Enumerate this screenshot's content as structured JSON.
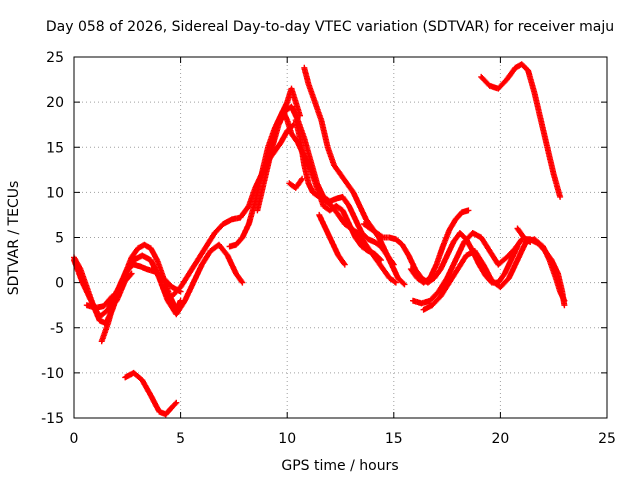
{
  "chart_data": {
    "type": "scatter",
    "title": "Day 058 of 2026, Sidereal Day-to-day VTEC variation (SDTVAR) for receiver maju",
    "xlabel": "GPS time / hours",
    "ylabel": "SDTVAR / TECUs",
    "xlim": [
      0,
      25
    ],
    "ylim": [
      -15,
      25
    ],
    "xticks": [
      0,
      5,
      10,
      15,
      20,
      25
    ],
    "yticks": [
      -15,
      -10,
      -5,
      0,
      5,
      10,
      15,
      20,
      25
    ],
    "xtick_labels": [
      "0",
      "5",
      "10",
      "15",
      "20",
      "25"
    ],
    "ytick_labels": [
      "-15",
      "-10",
      "-5",
      "0",
      "5",
      "10",
      "15",
      "20",
      "25"
    ],
    "grid": true,
    "marker": "+",
    "color": "#ff0000",
    "series": [
      {
        "name": "arc-01",
        "points": [
          [
            0,
            2.8
          ],
          [
            0.3,
            1.5
          ],
          [
            0.6,
            -0.5
          ],
          [
            0.9,
            -2.5
          ],
          [
            1.2,
            -4.2
          ],
          [
            1.5,
            -4.5
          ],
          [
            1.8,
            -3
          ],
          [
            2.1,
            -1
          ],
          [
            2.4,
            1
          ],
          [
            2.7,
            2.8
          ],
          [
            3,
            3.8
          ],
          [
            3.3,
            4.2
          ],
          [
            3.6,
            3.8
          ],
          [
            3.9,
            2.5
          ],
          [
            4.2,
            0.5
          ],
          [
            4.5,
            -1.5
          ],
          [
            4.8,
            -3
          ],
          [
            5.0,
            -2
          ]
        ]
      },
      {
        "name": "arc-02",
        "points": [
          [
            0,
            2.5
          ],
          [
            0.4,
            0
          ],
          [
            0.8,
            -2
          ],
          [
            1.2,
            -3.8
          ],
          [
            1.6,
            -3
          ],
          [
            2.0,
            -1
          ],
          [
            2.4,
            0.8
          ],
          [
            2.8,
            2.5
          ],
          [
            3.2,
            3
          ],
          [
            3.6,
            2.5
          ],
          [
            4.0,
            0.5
          ],
          [
            4.4,
            -2
          ],
          [
            4.8,
            -3.5
          ],
          [
            5.2,
            -2
          ],
          [
            5.6,
            0
          ],
          [
            6.0,
            2
          ],
          [
            6.4,
            3.5
          ],
          [
            6.8,
            4.2
          ],
          [
            7.2,
            3
          ],
          [
            7.6,
            1
          ],
          [
            7.9,
            0
          ]
        ]
      },
      {
        "name": "arc-03",
        "points": [
          [
            1.3,
            -6.5
          ],
          [
            1.6,
            -4.5
          ],
          [
            1.9,
            -2
          ],
          [
            2.2,
            0
          ],
          [
            2.5,
            1.5
          ],
          [
            2.8,
            2
          ],
          [
            3.1,
            1.8
          ],
          [
            3.4,
            1.5
          ],
          [
            3.8,
            1.2
          ],
          [
            4.2,
            0.5
          ],
          [
            4.6,
            -0.5
          ],
          [
            5.0,
            -1
          ]
        ]
      },
      {
        "name": "arc-04",
        "points": [
          [
            1.6,
            -3
          ],
          [
            2.0,
            -2
          ],
          [
            2.4,
            0.2
          ],
          [
            2.7,
            1
          ]
        ]
      },
      {
        "name": "arc-05",
        "points": [
          [
            0.6,
            -2.5
          ],
          [
            1.0,
            -2.8
          ],
          [
            1.4,
            -2.6
          ],
          [
            1.8,
            -1.5
          ]
        ]
      },
      {
        "name": "arc-06",
        "points": [
          [
            2.4,
            -10.5
          ],
          [
            2.8,
            -10
          ],
          [
            3.2,
            -10.8
          ],
          [
            3.6,
            -12.5
          ],
          [
            4.0,
            -14.3
          ],
          [
            4.3,
            -14.6
          ],
          [
            4.6,
            -13.8
          ],
          [
            4.8,
            -13.3
          ]
        ]
      },
      {
        "name": "arc-07",
        "points": [
          [
            4.6,
            -1.5
          ],
          [
            5.0,
            -0.5
          ],
          [
            5.4,
            1
          ],
          [
            5.8,
            2.5
          ],
          [
            6.2,
            4
          ],
          [
            6.6,
            5.5
          ],
          [
            7.0,
            6.5
          ],
          [
            7.4,
            7
          ],
          [
            7.8,
            7.2
          ],
          [
            8.2,
            8.5
          ],
          [
            8.5,
            10.5
          ],
          [
            8.8,
            12
          ],
          [
            9.1,
            13.5
          ],
          [
            9.4,
            14.5
          ],
          [
            9.7,
            15.5
          ],
          [
            10.0,
            16.8
          ],
          [
            10.3,
            17.5
          ]
        ]
      },
      {
        "name": "arc-08",
        "points": [
          [
            7.3,
            4
          ],
          [
            7.6,
            4.2
          ],
          [
            7.9,
            5
          ],
          [
            8.2,
            6.5
          ],
          [
            8.5,
            9
          ],
          [
            8.8,
            12
          ],
          [
            9.1,
            15
          ],
          [
            9.4,
            17
          ],
          [
            9.7,
            18.5
          ],
          [
            10.0,
            20
          ],
          [
            10.2,
            21.5
          ],
          [
            10.4,
            20
          ],
          [
            10.6,
            18.5
          ]
        ]
      },
      {
        "name": "arc-09",
        "points": [
          [
            8.6,
            8
          ],
          [
            8.9,
            11
          ],
          [
            9.2,
            14
          ],
          [
            9.5,
            17.5
          ],
          [
            9.8,
            19
          ],
          [
            10.0,
            18
          ],
          [
            10.2,
            16.5
          ],
          [
            10.5,
            15.5
          ],
          [
            10.8,
            14
          ],
          [
            11.1,
            12.5
          ],
          [
            11.4,
            10.5
          ],
          [
            11.7,
            8.5
          ],
          [
            12.0,
            8
          ],
          [
            12.3,
            8.5
          ],
          [
            12.6,
            8
          ],
          [
            12.9,
            6.5
          ],
          [
            13.2,
            5
          ],
          [
            13.5,
            4
          ],
          [
            13.8,
            3.5
          ],
          [
            14.1,
            3.2
          ],
          [
            14.4,
            2.5
          ]
        ]
      },
      {
        "name": "arc-10",
        "points": [
          [
            9.0,
            12.5
          ],
          [
            9.3,
            15
          ],
          [
            9.6,
            17.5
          ],
          [
            9.9,
            19
          ],
          [
            10.2,
            19.5
          ],
          [
            10.5,
            18
          ],
          [
            10.8,
            16
          ],
          [
            11.1,
            13.5
          ],
          [
            11.4,
            11
          ],
          [
            11.7,
            9.5
          ],
          [
            12.0,
            9
          ],
          [
            12.3,
            9.3
          ],
          [
            12.6,
            9.5
          ],
          [
            12.9,
            8.5
          ],
          [
            13.2,
            7
          ],
          [
            13.5,
            5.5
          ],
          [
            13.8,
            4.8
          ],
          [
            14.1,
            4.5
          ],
          [
            14.4,
            4
          ],
          [
            14.7,
            3
          ],
          [
            15.0,
            2
          ]
        ]
      },
      {
        "name": "arc-11",
        "points": [
          [
            10.8,
            23.8
          ],
          [
            11.0,
            22
          ],
          [
            11.3,
            20
          ],
          [
            11.6,
            18
          ],
          [
            11.9,
            15
          ],
          [
            12.2,
            13
          ],
          [
            12.5,
            12
          ],
          [
            12.8,
            11
          ],
          [
            13.1,
            10
          ],
          [
            13.4,
            8.5
          ],
          [
            13.7,
            7
          ],
          [
            14.0,
            6
          ],
          [
            14.3,
            5
          ],
          [
            14.6,
            3.5
          ],
          [
            14.9,
            2
          ],
          [
            15.2,
            0.5
          ],
          [
            15.5,
            -0.2
          ]
        ]
      },
      {
        "name": "arc-12",
        "points": [
          [
            10.4,
            18
          ],
          [
            10.6,
            16
          ],
          [
            10.8,
            13
          ],
          [
            11.0,
            11
          ],
          [
            11.2,
            10
          ],
          [
            11.5,
            9.5
          ],
          [
            11.8,
            9
          ],
          [
            12.1,
            8.5
          ],
          [
            12.4,
            7.5
          ],
          [
            12.7,
            6.5
          ],
          [
            13.0,
            6
          ],
          [
            13.3,
            5.5
          ],
          [
            13.6,
            4.5
          ],
          [
            13.9,
            3.5
          ],
          [
            14.2,
            2.5
          ],
          [
            14.5,
            1.5
          ],
          [
            14.8,
            0.5
          ],
          [
            15.1,
            0
          ]
        ]
      },
      {
        "name": "arc-13",
        "points": [
          [
            11.5,
            7.5
          ],
          [
            11.8,
            6
          ],
          [
            12.1,
            4.5
          ],
          [
            12.4,
            3
          ],
          [
            12.7,
            2
          ]
        ]
      },
      {
        "name": "arc-14",
        "points": [
          [
            10.1,
            11
          ],
          [
            10.4,
            10.5
          ],
          [
            10.7,
            11.5
          ]
        ]
      },
      {
        "name": "arc-15",
        "points": [
          [
            13.6,
            6.5
          ],
          [
            13.9,
            6
          ],
          [
            14.2,
            5.5
          ],
          [
            14.5,
            5
          ],
          [
            14.8,
            5
          ],
          [
            15.1,
            4.8
          ],
          [
            15.4,
            4.2
          ],
          [
            15.7,
            3
          ],
          [
            16.0,
            1.5
          ],
          [
            16.3,
            0.5
          ],
          [
            16.6,
            0
          ],
          [
            16.9,
            0.5
          ],
          [
            17.2,
            1.5
          ],
          [
            17.5,
            3
          ],
          [
            17.8,
            4.5
          ],
          [
            18.1,
            5.5
          ],
          [
            18.4,
            4.8
          ],
          [
            18.7,
            3.5
          ],
          [
            19.0,
            2
          ],
          [
            19.3,
            0.8
          ],
          [
            19.6,
            0
          ],
          [
            19.9,
            0
          ],
          [
            20.2,
            1
          ],
          [
            20.5,
            2.5
          ],
          [
            20.8,
            4
          ]
        ]
      },
      {
        "name": "arc-16",
        "points": [
          [
            15.8,
            1.5
          ],
          [
            16.1,
            0.5
          ],
          [
            16.4,
            0
          ],
          [
            16.7,
            0.5
          ],
          [
            17.0,
            2
          ],
          [
            17.3,
            4
          ],
          [
            17.6,
            5.8
          ],
          [
            17.9,
            7
          ],
          [
            18.2,
            7.8
          ],
          [
            18.5,
            8
          ]
        ]
      },
      {
        "name": "arc-17",
        "points": [
          [
            15.9,
            -2
          ],
          [
            16.3,
            -2.3
          ],
          [
            16.7,
            -2
          ],
          [
            17.1,
            -1
          ],
          [
            17.5,
            0.5
          ],
          [
            17.9,
            2.5
          ],
          [
            18.3,
            4.5
          ],
          [
            18.7,
            5.5
          ],
          [
            19.1,
            5
          ],
          [
            19.5,
            3.5
          ],
          [
            19.9,
            2
          ],
          [
            20.3,
            2.8
          ],
          [
            20.7,
            3.8
          ],
          [
            21.0,
            4.8
          ],
          [
            21.4,
            4.8
          ],
          [
            21.8,
            4.3
          ],
          [
            22.1,
            3.5
          ],
          [
            22.4,
            2.5
          ],
          [
            22.7,
            1
          ],
          [
            22.9,
            -1
          ],
          [
            23.0,
            -2.5
          ]
        ]
      },
      {
        "name": "arc-18",
        "points": [
          [
            16.4,
            -3
          ],
          [
            16.8,
            -2.5
          ],
          [
            17.2,
            -1.5
          ],
          [
            17.6,
            0
          ],
          [
            18.0,
            1.5
          ],
          [
            18.4,
            3
          ],
          [
            18.8,
            3.5
          ],
          [
            19.2,
            2
          ],
          [
            19.6,
            0.2
          ],
          [
            20.0,
            -0.5
          ],
          [
            20.4,
            0.5
          ],
          [
            20.8,
            2.5
          ],
          [
            21.2,
            4.5
          ],
          [
            21.6,
            4.8
          ],
          [
            22.0,
            4
          ],
          [
            22.3,
            2.5
          ],
          [
            22.6,
            0.5
          ],
          [
            22.8,
            -1
          ],
          [
            23.0,
            -2
          ]
        ]
      },
      {
        "name": "arc-19",
        "points": [
          [
            19.1,
            22.8
          ],
          [
            19.5,
            21.8
          ],
          [
            19.9,
            21.5
          ],
          [
            20.3,
            22.5
          ],
          [
            20.7,
            23.8
          ],
          [
            21.0,
            24.2
          ],
          [
            21.3,
            23.5
          ],
          [
            21.6,
            21
          ],
          [
            21.9,
            18
          ],
          [
            22.2,
            15
          ],
          [
            22.5,
            12
          ],
          [
            22.8,
            9.5
          ]
        ]
      },
      {
        "name": "arc-20",
        "points": [
          [
            20.8,
            6
          ],
          [
            21.1,
            5
          ],
          [
            21.4,
            4.5
          ]
        ]
      }
    ]
  }
}
